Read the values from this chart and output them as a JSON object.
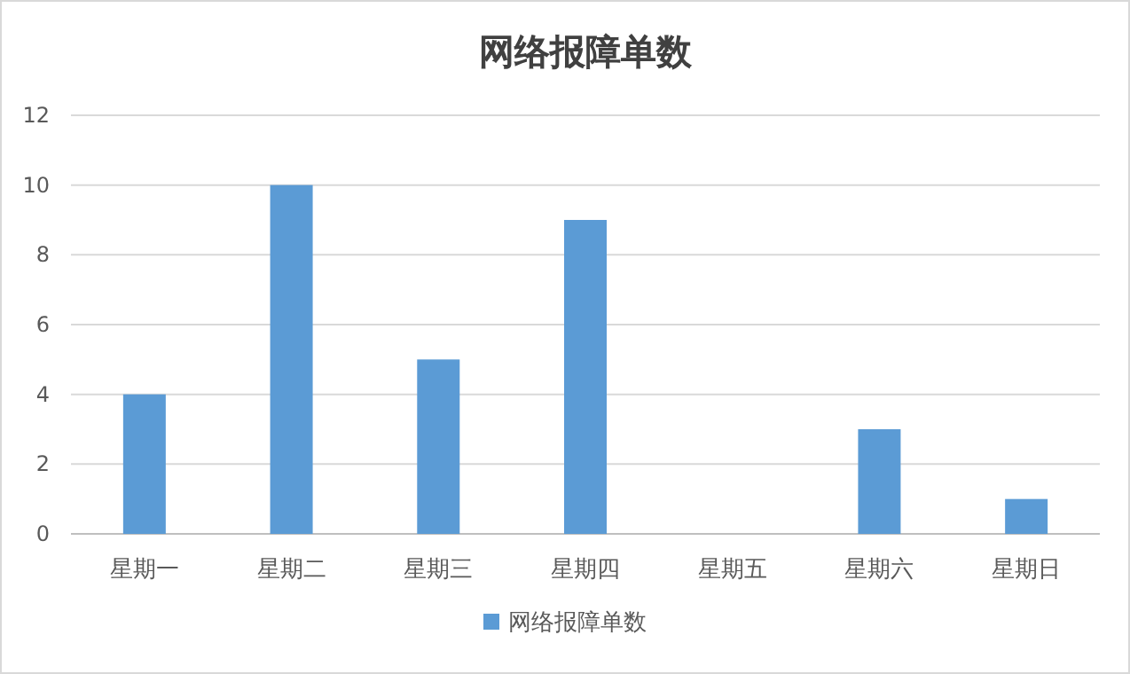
{
  "chart_data": {
    "type": "bar",
    "title": "网络报障单数",
    "categories": [
      "星期一",
      "星期二",
      "星期三",
      "星期四",
      "星期五",
      "星期六",
      "星期日"
    ],
    "series": [
      {
        "name": "网络报障单数",
        "color": "#5b9bd5",
        "values": [
          4,
          10,
          5,
          9,
          0,
          3,
          1
        ]
      }
    ],
    "ylim": [
      0,
      12
    ],
    "yticks": [
      0,
      2,
      4,
      6,
      8,
      10,
      12
    ],
    "grid": "y",
    "legend": "bottom"
  }
}
